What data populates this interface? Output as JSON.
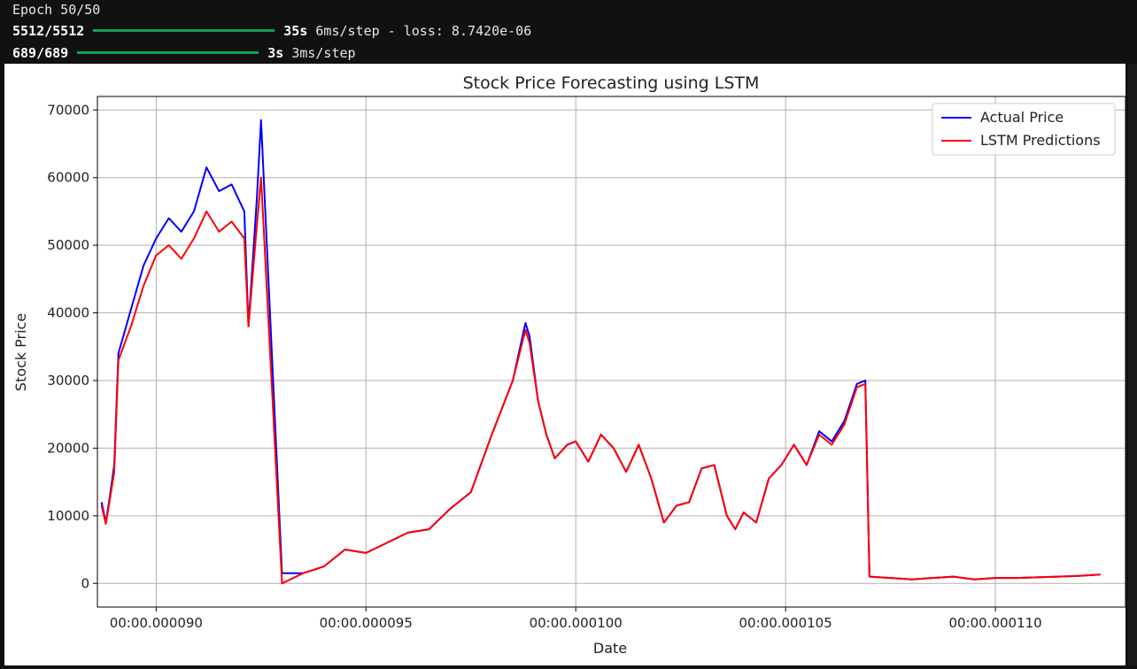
{
  "console": {
    "epoch_line": "Epoch 50/50",
    "train": {
      "counter": "5512/5512",
      "time": "35s",
      "rest": "6ms/step - loss: 8.7420e-06",
      "progress": 1.0
    },
    "predict": {
      "counter": "689/689",
      "time": "3s",
      "rest": "3ms/step",
      "progress": 1.0
    }
  },
  "chart_data": {
    "type": "line",
    "title": "Stock Price Forecasting using LSTM",
    "xlabel": "Date",
    "ylabel": "Stock Price",
    "xlim": [
      8.86e-05,
      0.0001131
    ],
    "ylim": [
      -3500,
      72000
    ],
    "x_ticks": [
      9e-05,
      9.5e-05,
      0.0001,
      0.000105,
      0.00011
    ],
    "x_tick_labels": [
      "00:00.000090",
      "00:00.000095",
      "00:00.000100",
      "00:00.000105",
      "00:00.000110"
    ],
    "y_ticks": [
      0,
      10000,
      20000,
      30000,
      40000,
      50000,
      60000,
      70000
    ],
    "y_tick_labels": [
      "0",
      "10000",
      "20000",
      "30000",
      "40000",
      "50000",
      "60000",
      "70000"
    ],
    "grid": true,
    "legend": "top-right",
    "series": [
      {
        "name": "Actual Price",
        "color": "#0000ff",
        "x": [
          8.87e-05,
          8.88e-05,
          8.89e-05,
          8.9e-05,
          8.91e-05,
          8.94e-05,
          8.97e-05,
          9e-05,
          9.03e-05,
          9.06e-05,
          9.09e-05,
          9.12e-05,
          9.15e-05,
          9.18e-05,
          9.21e-05,
          9.22e-05,
          9.24e-05,
          9.25e-05,
          9.3e-05,
          9.35e-05,
          9.4e-05,
          9.45e-05,
          9.5e-05,
          9.55e-05,
          9.6e-05,
          9.65e-05,
          9.7e-05,
          9.75e-05,
          9.8e-05,
          9.85e-05,
          9.88e-05,
          9.89e-05,
          9.91e-05,
          9.93e-05,
          9.95e-05,
          9.98e-05,
          0.0001,
          0.0001003,
          0.0001006,
          0.0001009,
          0.0001012,
          0.0001015,
          0.0001018,
          0.0001021,
          0.0001024,
          0.0001027,
          0.000103,
          0.0001033,
          0.0001036,
          0.0001038,
          0.000104,
          0.0001043,
          0.0001046,
          0.0001049,
          0.0001052,
          0.0001055,
          0.0001058,
          0.0001061,
          0.0001064,
          0.0001067,
          0.0001069,
          0.000107,
          0.0001075,
          0.000108,
          0.0001085,
          0.000109,
          0.0001095,
          0.00011,
          0.0001105,
          0.000111,
          0.0001115,
          0.000112,
          0.0001125
        ],
        "y": [
          12000,
          9000,
          13000,
          17500,
          34000,
          40500,
          47000,
          51000,
          54000,
          52000,
          55000,
          61500,
          58000,
          59000,
          55000,
          38000,
          57000,
          68500,
          1500,
          1500,
          2500,
          5000,
          4500,
          6000,
          7500,
          8000,
          11000,
          13500,
          22000,
          30000,
          38500,
          36500,
          27000,
          22000,
          18500,
          20500,
          21000,
          18000,
          22000,
          20000,
          16500,
          20500,
          15500,
          9000,
          11500,
          12000,
          17000,
          17500,
          10000,
          8000,
          10500,
          9000,
          15500,
          17500,
          20500,
          17500,
          22500,
          21000,
          24000,
          29500,
          30000,
          1000,
          800,
          600,
          800,
          1000,
          600,
          800,
          800,
          900,
          1000,
          1100,
          1300
        ]
      },
      {
        "name": "LSTM Predictions",
        "color": "#ff0000",
        "x": [
          8.87e-05,
          8.88e-05,
          8.89e-05,
          8.9e-05,
          8.91e-05,
          8.94e-05,
          8.97e-05,
          9e-05,
          9.03e-05,
          9.06e-05,
          9.09e-05,
          9.12e-05,
          9.15e-05,
          9.18e-05,
          9.21e-05,
          9.22e-05,
          9.24e-05,
          9.25e-05,
          9.3e-05,
          9.35e-05,
          9.4e-05,
          9.45e-05,
          9.5e-05,
          9.55e-05,
          9.6e-05,
          9.65e-05,
          9.7e-05,
          9.75e-05,
          9.8e-05,
          9.85e-05,
          9.88e-05,
          9.89e-05,
          9.91e-05,
          9.93e-05,
          9.95e-05,
          9.98e-05,
          0.0001,
          0.0001003,
          0.0001006,
          0.0001009,
          0.0001012,
          0.0001015,
          0.0001018,
          0.0001021,
          0.0001024,
          0.0001027,
          0.000103,
          0.0001033,
          0.0001036,
          0.0001038,
          0.000104,
          0.0001043,
          0.0001046,
          0.0001049,
          0.0001052,
          0.0001055,
          0.0001058,
          0.0001061,
          0.0001064,
          0.0001067,
          0.0001069,
          0.000107,
          0.0001075,
          0.000108,
          0.0001085,
          0.000109,
          0.0001095,
          0.00011,
          0.0001105,
          0.000111,
          0.0001115,
          0.000112,
          0.0001125
        ],
        "y": [
          11500,
          8800,
          12500,
          16500,
          33000,
          38000,
          44000,
          48500,
          50000,
          48000,
          51000,
          55000,
          52000,
          53500,
          51000,
          38000,
          53000,
          60000,
          0,
          1500,
          2500,
          5000,
          4500,
          6000,
          7500,
          8000,
          11000,
          13500,
          22000,
          30000,
          37500,
          35500,
          27000,
          22000,
          18500,
          20500,
          21000,
          18000,
          22000,
          20000,
          16500,
          20500,
          15500,
          9000,
          11500,
          12000,
          17000,
          17500,
          10000,
          8000,
          10500,
          9000,
          15500,
          17500,
          20500,
          17500,
          22000,
          20500,
          23500,
          29000,
          29500,
          1000,
          800,
          600,
          800,
          1000,
          600,
          800,
          800,
          900,
          1000,
          1100,
          1300
        ]
      }
    ]
  }
}
